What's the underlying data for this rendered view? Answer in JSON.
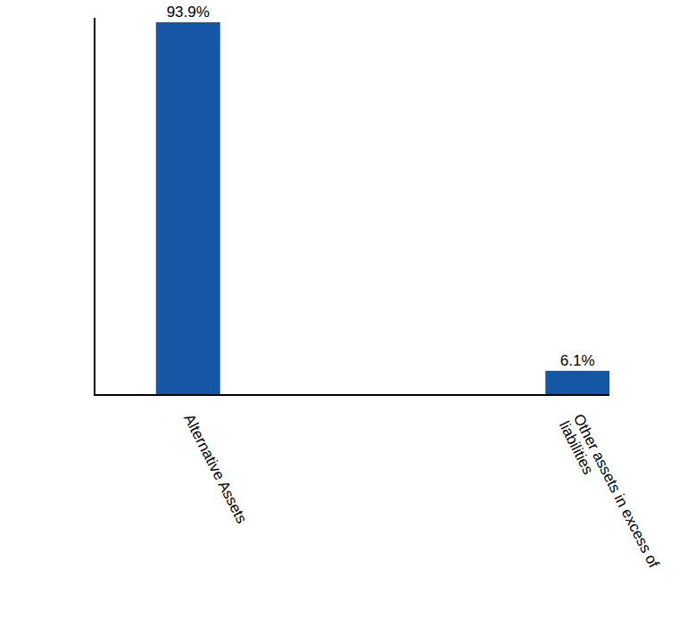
{
  "chart_data": {
    "type": "bar",
    "categories": [
      "Alternative Assets",
      "Other assets in excess of liabilities"
    ],
    "values": [
      93.9,
      6.1
    ],
    "value_labels": [
      "93.9%",
      "6.1%"
    ],
    "data_labels": true,
    "color": "#1557a5",
    "ylim": [
      0,
      95
    ],
    "yticks": [],
    "tick_labels": "x",
    "grid": false
  }
}
